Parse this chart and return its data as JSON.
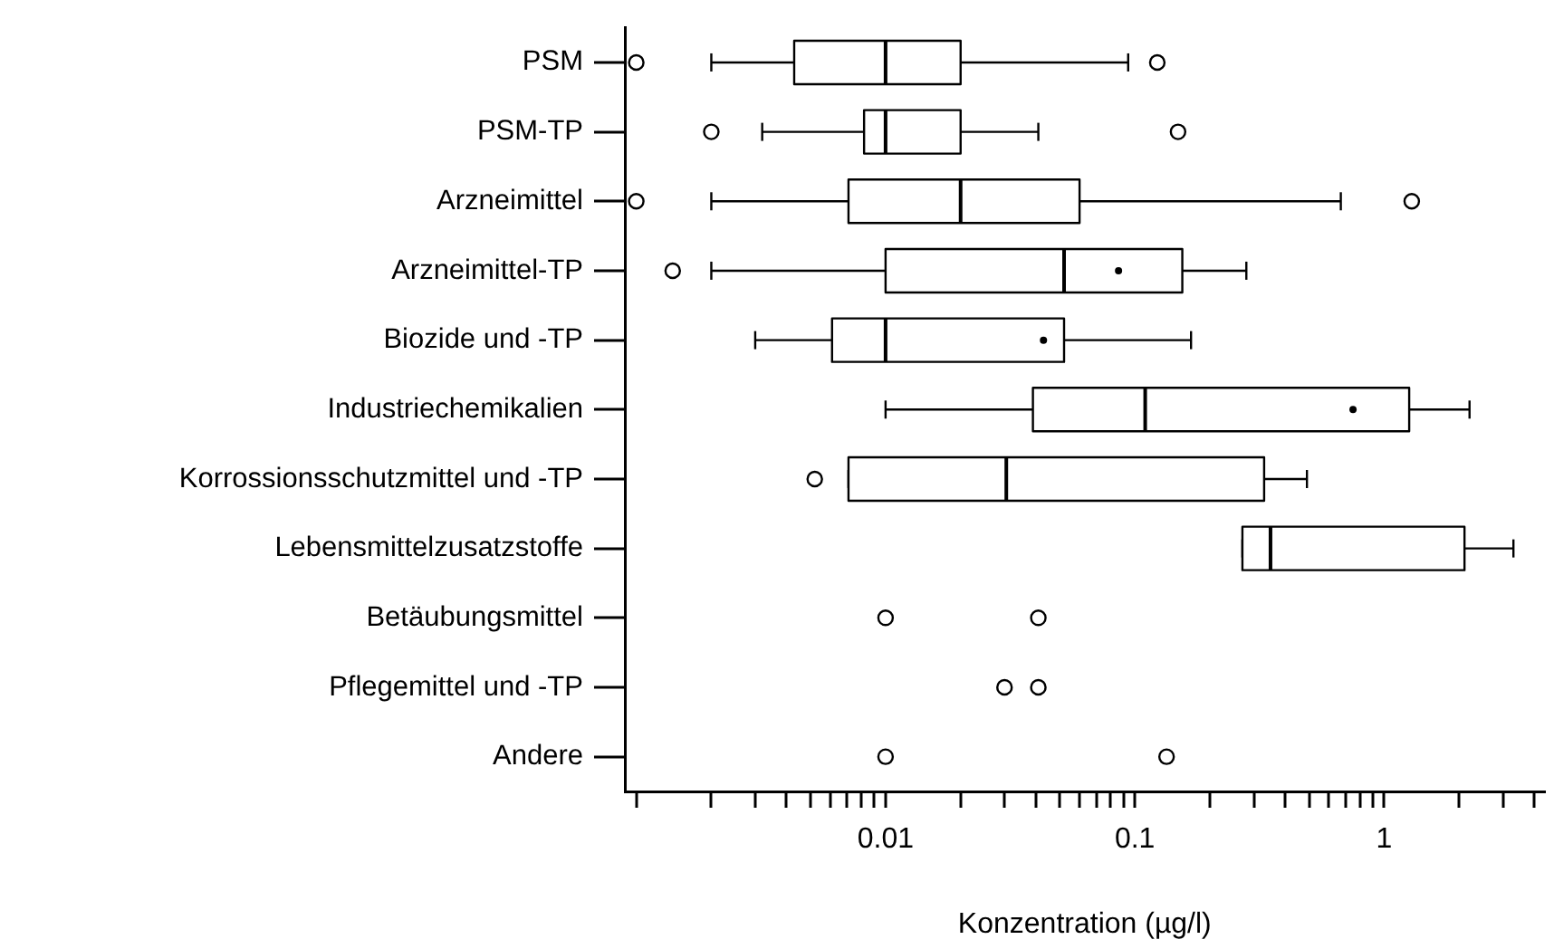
{
  "chart_data": {
    "type": "box",
    "orientation": "horizontal",
    "xlabel": "Konzentration (µg/l)",
    "categories": [
      "PSM",
      "PSM-TP",
      "Arzneimittel",
      "Arzneimittel-TP",
      "Biozide und -TP",
      "Industriechemikalien",
      "Korrossionsschutzmittel und -TP",
      "Lebensmittelzusatzstoffe",
      "Betäubungsmittel",
      "Pflegemittel und -TP",
      "Andere"
    ],
    "boxes": [
      {
        "low": 0.002,
        "q1": 0.0043,
        "median": 0.01,
        "q3": 0.02,
        "high": 0.094,
        "outliers": [
          0.001,
          0.123
        ]
      },
      {
        "low": 0.0032,
        "q1": 0.0082,
        "median": 0.01,
        "q3": 0.02,
        "high": 0.041,
        "outliers": [
          0.002,
          0.149
        ]
      },
      {
        "low": 0.002,
        "q1": 0.0071,
        "median": 0.02,
        "q3": 0.06,
        "high": 0.67,
        "outliers": [
          0.001,
          1.29
        ]
      },
      {
        "low": 0.002,
        "q1": 0.01,
        "median": 0.052,
        "q3": 0.155,
        "high": 0.28,
        "mean": 0.086,
        "outliers": [
          0.0014
        ]
      },
      {
        "low": 0.003,
        "q1": 0.0061,
        "median": 0.01,
        "q3": 0.052,
        "high": 0.168,
        "mean": 0.043
      },
      {
        "low": 0.01,
        "q1": 0.039,
        "median": 0.11,
        "q3": 1.26,
        "high": 2.2,
        "mean": 0.75
      },
      {
        "low": 0.0071,
        "q1": 0.0071,
        "median": 0.0305,
        "q3": 0.33,
        "high": 0.49,
        "outliers": [
          0.0052
        ]
      },
      {
        "low": 0.27,
        "q1": 0.27,
        "median": 0.35,
        "q3": 2.1,
        "high": 3.3
      },
      null,
      null,
      null
    ],
    "series": [
      {
        "type": "scatter",
        "color": "#000000",
        "x": [
          "Betäubungsmittel",
          "Betäubungsmittel",
          "Pflegemittel und -TP",
          "Pflegemittel und -TP",
          "Andere",
          "Andere"
        ],
        "values": [
          0.01,
          0.041,
          0.03,
          0.041,
          0.01,
          0.134
        ]
      }
    ],
    "xlim": [
      0.0009,
      4.4
    ],
    "xticks": [
      {
        "value": 0.001,
        "label": null
      },
      {
        "value": 0.002,
        "label": null
      },
      {
        "value": 0.003,
        "label": null
      },
      {
        "value": 0.004,
        "label": null
      },
      {
        "value": 0.005,
        "label": null
      },
      {
        "value": 0.006,
        "label": null
      },
      {
        "value": 0.007,
        "label": null
      },
      {
        "value": 0.008,
        "label": null
      },
      {
        "value": 0.009,
        "label": null
      },
      0.01,
      {
        "value": 0.02,
        "label": null
      },
      {
        "value": 0.03,
        "label": null
      },
      {
        "value": 0.04,
        "label": null
      },
      {
        "value": 0.05,
        "label": null
      },
      {
        "value": 0.06,
        "label": null
      },
      {
        "value": 0.07,
        "label": null
      },
      {
        "value": 0.08,
        "label": null
      },
      {
        "value": 0.09,
        "label": null
      },
      0.1,
      {
        "value": 0.2,
        "label": null
      },
      {
        "value": 0.3,
        "label": null
      },
      {
        "value": 0.4,
        "label": null
      },
      {
        "value": 0.5,
        "label": null
      },
      {
        "value": 0.6,
        "label": null
      },
      {
        "value": 0.7,
        "label": null
      },
      {
        "value": 0.8,
        "label": null
      },
      {
        "value": 0.9,
        "label": null
      },
      1,
      {
        "value": 2,
        "label": null
      },
      {
        "value": 3,
        "label": null
      },
      {
        "value": 4,
        "label": null
      }
    ],
    "log": "x",
    "grid": false,
    "legend": false,
    "marker": "circle"
  }
}
